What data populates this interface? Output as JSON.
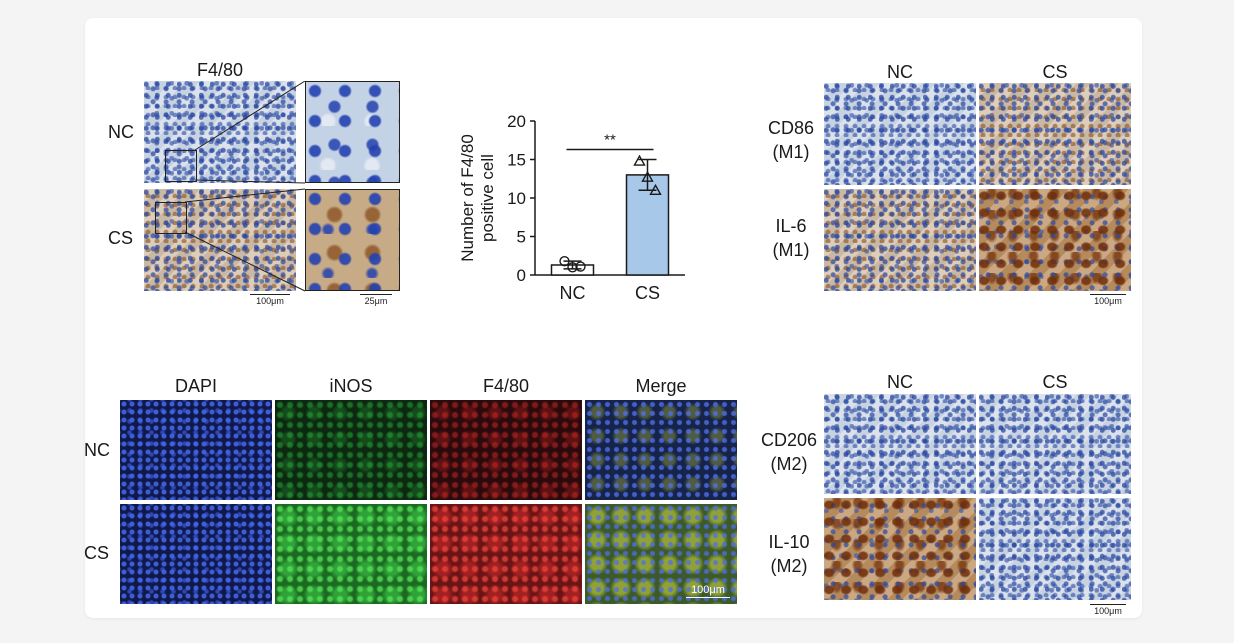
{
  "panel_a": {
    "title": "F4/80",
    "rows": [
      "NC",
      "CS"
    ],
    "scale_left": "100μm",
    "scale_right": "25μm"
  },
  "chart_data": {
    "type": "bar",
    "categories": [
      "NC",
      "CS"
    ],
    "values": [
      1.3,
      13
    ],
    "errors": [
      0.5,
      2
    ],
    "points": [
      [
        1.8,
        1.0,
        1.1
      ],
      [
        14.8,
        12.7,
        11.0
      ]
    ],
    "ylabel": "Number of F4/80\npositive cell",
    "ylim": [
      0,
      20
    ],
    "yticks": [
      0,
      5,
      10,
      15,
      20
    ],
    "significance": "**",
    "bar_colors": [
      "#ffffff",
      "#a8c8ea"
    ]
  },
  "panel_c": {
    "columns": [
      "NC",
      "CS"
    ],
    "rows": [
      {
        "line1": "CD86",
        "line2": "(M1)"
      },
      {
        "line1": "IL-6",
        "line2": "(M1)"
      }
    ],
    "scale": "100μm"
  },
  "panel_d": {
    "columns": [
      "DAPI",
      "iNOS",
      "F4/80",
      "Merge"
    ],
    "rows": [
      "NC",
      "CS"
    ],
    "scale": "100μm"
  },
  "panel_e": {
    "columns": [
      "NC",
      "CS"
    ],
    "rows": [
      {
        "line1": "CD206",
        "line2": "(M2)"
      },
      {
        "line1": "IL-10",
        "line2": "(M2)"
      }
    ],
    "scale": "100μm"
  }
}
